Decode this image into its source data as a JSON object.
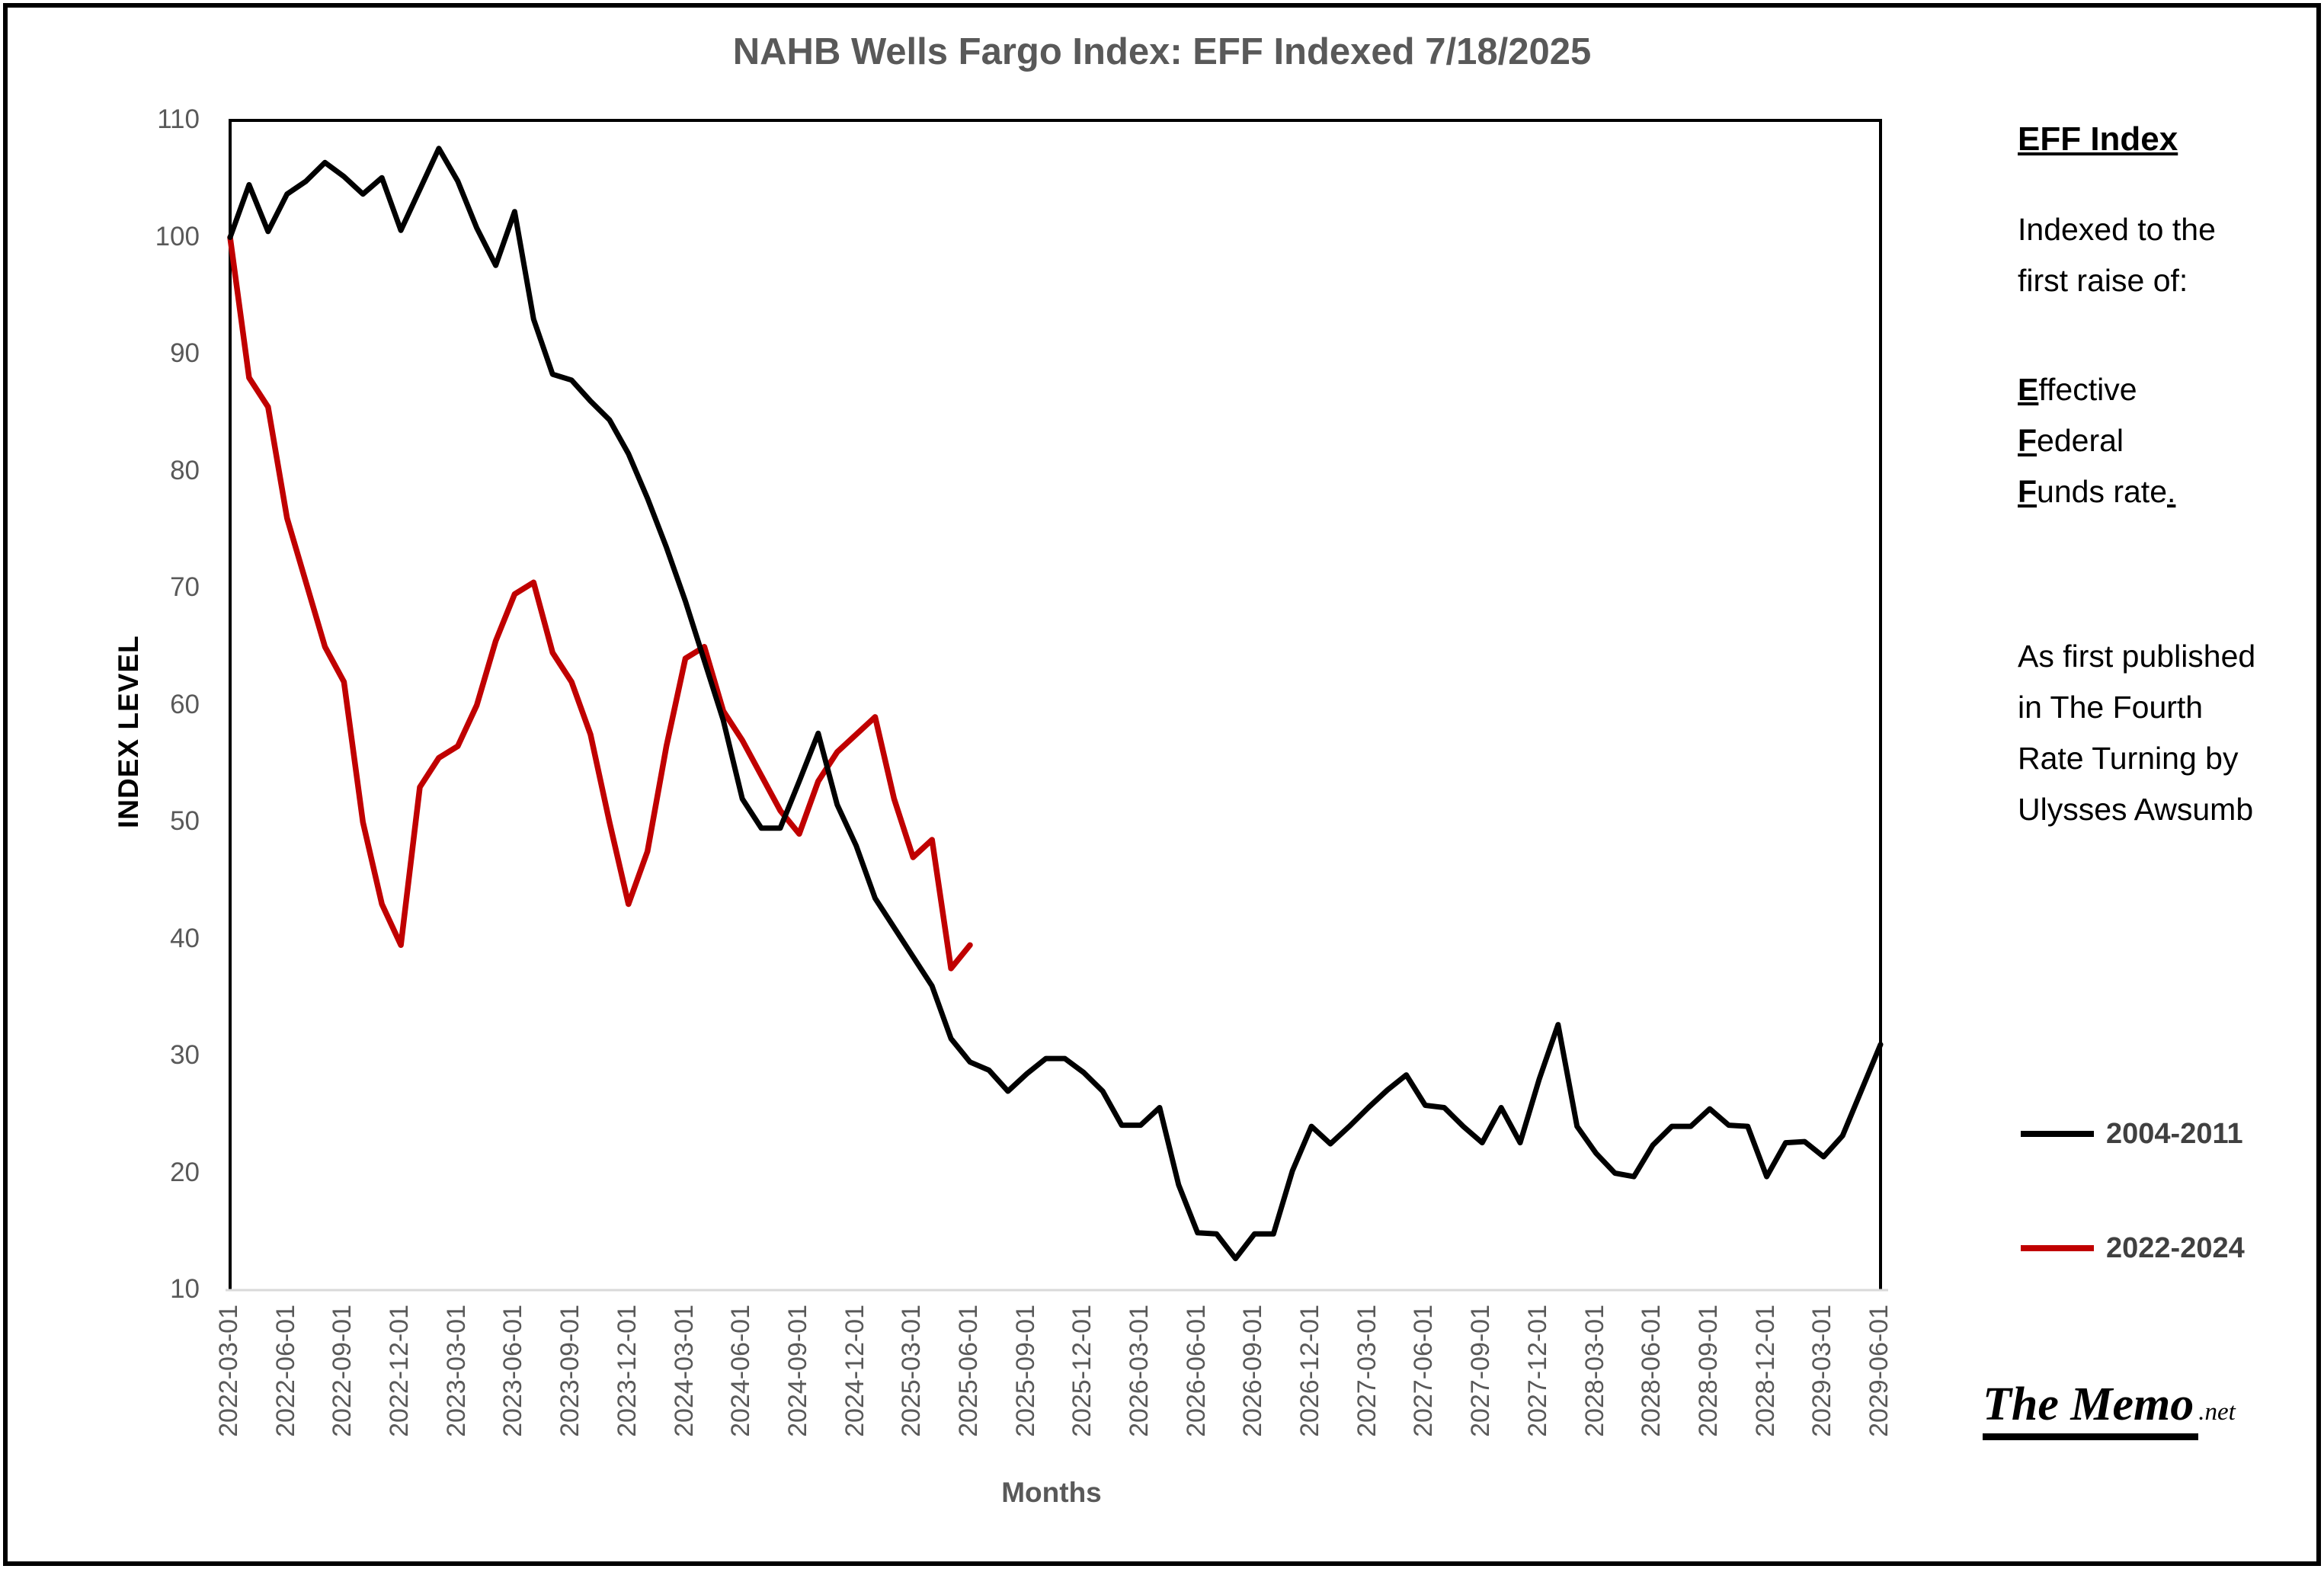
{
  "title": "NAHB Wells Fargo Index:  EFF  Indexed 7/18/2025",
  "axes": {
    "y_label": "INDEX LEVEL",
    "x_label": "Months",
    "y_ticks": [
      110,
      100,
      90,
      80,
      70,
      60,
      50,
      40,
      30,
      20,
      10
    ]
  },
  "chart_data": {
    "type": "line",
    "title": "NAHB Wells Fargo Index:  EFF  Indexed 7/18/2025",
    "xlabel": "Months",
    "ylabel": "INDEX LEVEL",
    "ylim": [
      10,
      110
    ],
    "grid": false,
    "legend_position": "right",
    "x_tick_labels": [
      "2022-03-01",
      "2022-06-01",
      "2022-09-01",
      "2022-12-01",
      "2023-03-01",
      "2023-06-01",
      "2023-09-01",
      "2023-12-01",
      "2024-03-01",
      "2024-06-01",
      "2024-09-01",
      "2024-12-01",
      "2025-03-01",
      "2025-06-01",
      "2025-09-01",
      "2025-12-01",
      "2026-03-01",
      "2026-06-01",
      "2026-09-01",
      "2026-12-01",
      "2027-03-01",
      "2027-06-01",
      "2027-09-01",
      "2027-12-01",
      "2028-03-01",
      "2028-06-01",
      "2028-09-01",
      "2028-12-01",
      "2029-03-01",
      "2029-06-01"
    ],
    "months_per_tick": 3,
    "series": [
      {
        "name": "2004-2011",
        "color": "#000000",
        "values": [
          100,
          104.5,
          100.5,
          103.7,
          104.8,
          106.4,
          105.2,
          103.7,
          105.1,
          100.6,
          104.1,
          107.6,
          104.8,
          100.8,
          97.6,
          102.2,
          93,
          88.3,
          87.8,
          86,
          84.4,
          81.5,
          77.7,
          73.5,
          68.9,
          63.8,
          58.7,
          52,
          49.5,
          49.5,
          53.5,
          57.6,
          51.5,
          48,
          43.5,
          41,
          38.5,
          36,
          31.5,
          29.5,
          28.8,
          27,
          28.5,
          29.8,
          29.8,
          28.6,
          27,
          24.1,
          24.1,
          25.6,
          19,
          14.9,
          14.8,
          12.7,
          14.8,
          14.8,
          20.2,
          24,
          22.5,
          24,
          25.6,
          27.1,
          28.4,
          25.8,
          25.6,
          24,
          22.6,
          25.6,
          22.6,
          28,
          32.7,
          24,
          21.7,
          20,
          19.7,
          22.4,
          24,
          24,
          25.5,
          24.1,
          24,
          19.7,
          22.6,
          22.7,
          21.4,
          23.2,
          27.1,
          31
        ]
      },
      {
        "name": "2022-2024",
        "color": "#C00000",
        "values": [
          100,
          88,
          85.5,
          76,
          70.5,
          65,
          62,
          50,
          43,
          39.5,
          53,
          55.5,
          56.5,
          60,
          65.5,
          69.5,
          70.5,
          64.5,
          62,
          57.5,
          50,
          43,
          47.5,
          56.5,
          64,
          65,
          59.5,
          57,
          54,
          51,
          49,
          53.5,
          56,
          57.5,
          59,
          52,
          47,
          48.5,
          37.5,
          39.5
        ]
      }
    ]
  },
  "side_panel": {
    "heading": "EFF Index",
    "para1": "Indexed to the first raise of:",
    "eff": {
      "e_lead": "E",
      "e_rest": "ffective",
      "f_lead": "F",
      "f_rest": "ederal",
      "f2_lead": "F",
      "f2_rest": "unds rate",
      "period": "."
    },
    "para3": "As first published in The Fourth Rate Turning by Ulysses Awsumb"
  },
  "legend": [
    {
      "label": "2004-2011",
      "color": "#000000"
    },
    {
      "label": "2022-2024",
      "color": "#C00000"
    }
  ],
  "watermark": {
    "name": "The Memo",
    "suffix": ".net"
  },
  "colors": {
    "title": "#595959",
    "tick_label": "#595959",
    "black_series": "#000000",
    "red_series": "#C00000",
    "plot_border": "#000000",
    "x_axis_line": "#D9D9D9"
  }
}
